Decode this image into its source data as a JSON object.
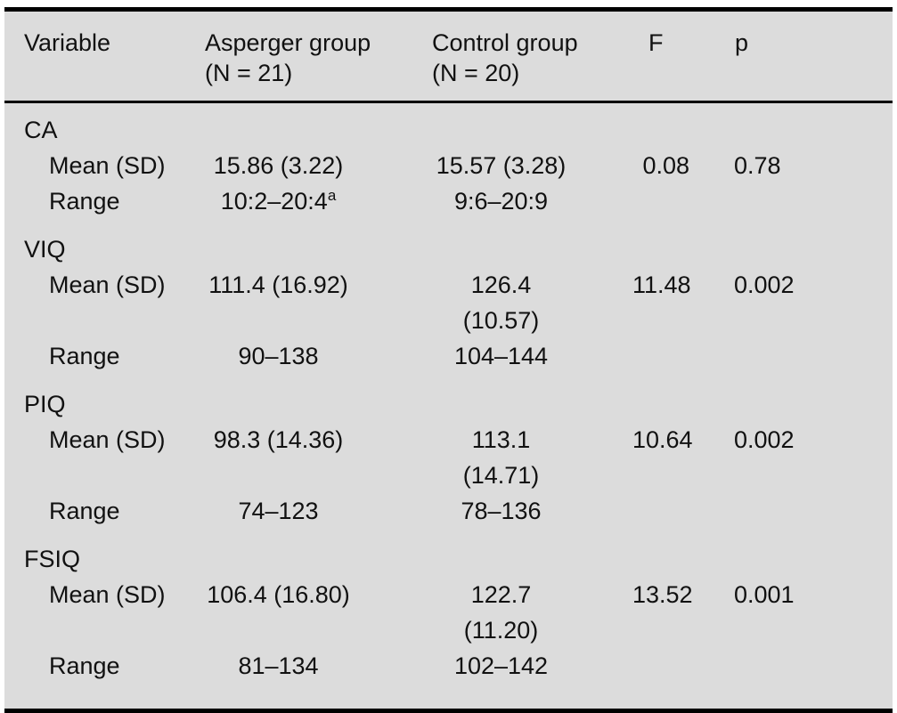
{
  "colors": {
    "table_background": "#dcdcdc",
    "rule_color": "#000000",
    "text_color": "#111111"
  },
  "header": {
    "variable": "Variable",
    "asperger_line1": "Asperger group",
    "asperger_line2": "(N = 21)",
    "control_line1": "Control group",
    "control_line2": "(N = 20)",
    "f": "F",
    "p": "p"
  },
  "groups": [
    {
      "name": "CA",
      "mean": {
        "label": "Mean (SD)",
        "asperger": "15.86 (3.22)",
        "control": "15.57 (3.28)",
        "f": "0.08",
        "p": "0.78"
      },
      "range": {
        "label": "Range",
        "asperger": "10:2–20:4",
        "asperger_sup": "a",
        "control": "9:6–20:9"
      }
    },
    {
      "name": "VIQ",
      "mean": {
        "label": "Mean (SD)",
        "asperger": "111.4 (16.92)",
        "control": "126.4 (10.57)",
        "f": "11.48",
        "p": "0.002"
      },
      "range": {
        "label": "Range",
        "asperger": "90–138",
        "control": "104–144"
      }
    },
    {
      "name": "PIQ",
      "mean": {
        "label": "Mean (SD)",
        "asperger": "98.3 (14.36)",
        "control": "113.1 (14.71)",
        "f": "10.64",
        "p": "0.002"
      },
      "range": {
        "label": "Range",
        "asperger": "74–123",
        "control": "78–136"
      }
    },
    {
      "name": "FSIQ",
      "mean": {
        "label": "Mean (SD)",
        "asperger": "106.4 (16.80)",
        "control": "122.7 (11.20)",
        "f": "13.52",
        "p": "0.001"
      },
      "range": {
        "label": "Range",
        "asperger": "81–134",
        "control": "102–142"
      }
    }
  ]
}
